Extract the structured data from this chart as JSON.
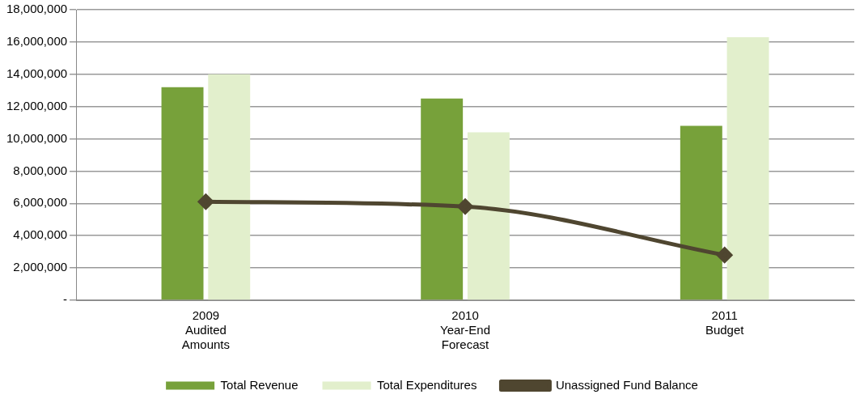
{
  "chart_data": {
    "type": "bar",
    "categories": [
      "2009\nAudited\nAmounts",
      "2010\nYear-End\nForecast",
      "2011\nBudget"
    ],
    "series": [
      {
        "name": "Total Revenue",
        "color": "#77a13a",
        "values": [
          13200000,
          12500000,
          10800000
        ]
      },
      {
        "name": "Total Expenditures",
        "color": "#e2efcc",
        "values": [
          14000000,
          10400000,
          16300000
        ]
      },
      {
        "name": "Unassigned Fund Balance",
        "color": "#4f4630",
        "type": "line",
        "values": [
          6100000,
          5800000,
          2800000
        ]
      }
    ],
    "ylim": [
      0,
      18000000
    ],
    "yticks": [
      {
        "value": 0,
        "label": "-"
      },
      {
        "value": 2000000,
        "label": "2,000,000"
      },
      {
        "value": 4000000,
        "label": "4,000,000"
      },
      {
        "value": 6000000,
        "label": "6,000,000"
      },
      {
        "value": 8000000,
        "label": "8,000,000"
      },
      {
        "value": 10000000,
        "label": "10,000,000"
      },
      {
        "value": 12000000,
        "label": "12,000,000"
      },
      {
        "value": 14000000,
        "label": "14,000,000"
      },
      {
        "value": 16000000,
        "label": "16,000,000"
      },
      {
        "value": 18000000,
        "label": "18,000,000"
      }
    ],
    "grid": "y",
    "legend": "bottom",
    "marker": "diamond"
  }
}
